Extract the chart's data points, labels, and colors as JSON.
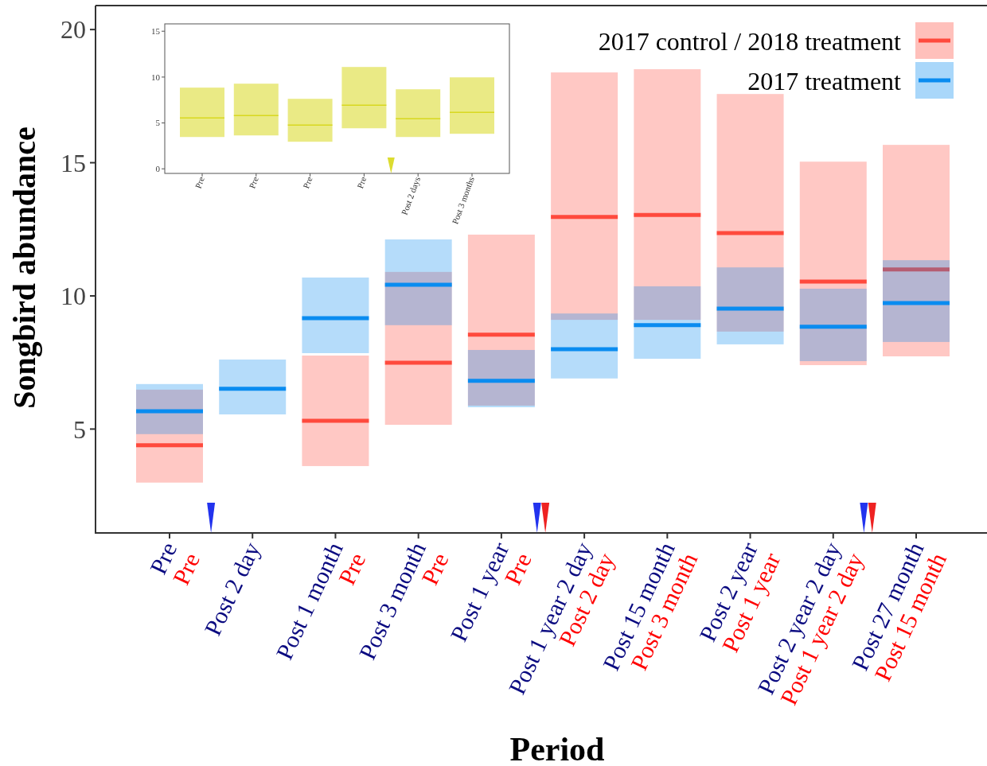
{
  "chart_data": [
    {
      "type": "box",
      "xlabel": "Period",
      "ylabel": "Songbird abundance",
      "categories": [
        "Pre\nPre",
        "Post 2 day",
        "Post 1 month\nPre",
        "Post 3 month\nPre",
        "Post 1 year\nPre",
        "Post 1 year 2 day\nPost 2 day",
        "Post 15 month\nPost 3 month",
        "Post 2 year\nPost 1 year",
        "Post 2 year 2 day\nPost 1 year 2 day",
        "Post 27 month\nPost 15 month"
      ],
      "ylim": [
        1.1,
        20.9
      ],
      "yticks": [
        5,
        10,
        15,
        20
      ],
      "legend": "top right",
      "grid": false,
      "series": [
        {
          "name": "2017 control / 2018 treatment",
          "color": "#ff4a3d",
          "boxes": [
            {
              "low": 2.99,
              "q1": 2.99,
              "median": 4.39,
              "q3": 6.48,
              "high": 6.48
            },
            null,
            {
              "low": 3.61,
              "q1": 3.61,
              "median": 5.31,
              "q3": 7.76,
              "high": 7.76
            },
            {
              "low": 5.16,
              "q1": 5.16,
              "median": 7.49,
              "q3": 10.9,
              "high": 10.9
            },
            {
              "low": 5.88,
              "q1": 5.88,
              "median": 8.54,
              "q3": 12.3,
              "high": 12.3
            },
            {
              "low": 9.1,
              "q1": 9.1,
              "median": 12.96,
              "q3": 18.39,
              "high": 18.39
            },
            {
              "low": 9.1,
              "q1": 9.1,
              "median": 13.04,
              "q3": 18.51,
              "high": 18.51
            },
            {
              "low": 8.66,
              "q1": 8.66,
              "median": 12.36,
              "q3": 17.58,
              "high": 17.58
            },
            {
              "low": 7.4,
              "q1": 7.4,
              "median": 10.54,
              "q3": 15.04,
              "high": 15.04
            },
            {
              "low": 7.73,
              "q1": 7.73,
              "median": 10.99,
              "q3": 15.67,
              "high": 15.67
            }
          ]
        },
        {
          "name": "2017 treatment",
          "color": "#0a8cf0",
          "boxes": [
            {
              "low": 4.81,
              "q1": 4.81,
              "median": 5.67,
              "q3": 6.69,
              "high": 6.69
            },
            {
              "low": 5.55,
              "q1": 5.55,
              "median": 6.51,
              "q3": 7.61,
              "high": 7.61
            },
            {
              "low": 7.85,
              "q1": 7.85,
              "median": 9.16,
              "q3": 10.69,
              "high": 10.69
            },
            {
              "low": 8.9,
              "q1": 8.9,
              "median": 10.42,
              "q3": 12.12,
              "high": 12.12
            },
            {
              "low": 5.82,
              "q1": 5.82,
              "median": 6.81,
              "q3": 7.97,
              "high": 7.97
            },
            {
              "low": 6.9,
              "q1": 6.9,
              "median": 8.0,
              "q3": 9.34,
              "high": 9.34
            },
            {
              "low": 7.64,
              "q1": 7.64,
              "median": 8.9,
              "q3": 10.36,
              "high": 10.36
            },
            {
              "low": 8.18,
              "q1": 8.18,
              "median": 9.52,
              "q3": 11.07,
              "high": 11.07
            },
            {
              "low": 7.55,
              "q1": 7.55,
              "median": 8.84,
              "q3": 10.27,
              "high": 10.27
            },
            {
              "low": 8.27,
              "q1": 8.27,
              "median": 9.73,
              "q3": 11.34,
              "high": 11.34
            }
          ]
        }
      ]
    },
    {
      "type": "box",
      "categories": [
        "Pre",
        "Pre",
        "Pre",
        "Pre",
        "Post 2 days",
        "Post 3 months"
      ],
      "ylim": [
        -0.5,
        15.8
      ],
      "yticks": [
        0,
        5,
        10,
        15
      ],
      "grid": false,
      "series": [
        {
          "color": "#d8d820",
          "boxes": [
            {
              "low": 3.47,
              "q1": 3.47,
              "median": 5.55,
              "q3": 8.85,
              "high": 8.85
            },
            {
              "low": 3.64,
              "q1": 3.64,
              "median": 5.81,
              "q3": 9.28,
              "high": 9.28
            },
            {
              "low": 2.95,
              "q1": 2.95,
              "median": 4.77,
              "q3": 7.63,
              "high": 7.63
            },
            {
              "low": 4.42,
              "q1": 4.42,
              "median": 6.94,
              "q3": 11.1,
              "high": 11.1
            },
            {
              "low": 3.47,
              "q1": 3.47,
              "median": 5.46,
              "q3": 8.67,
              "high": 8.67
            },
            {
              "low": 3.82,
              "q1": 3.82,
              "median": 6.16,
              "q3": 9.97,
              "high": 9.97
            }
          ]
        }
      ]
    }
  ]
}
